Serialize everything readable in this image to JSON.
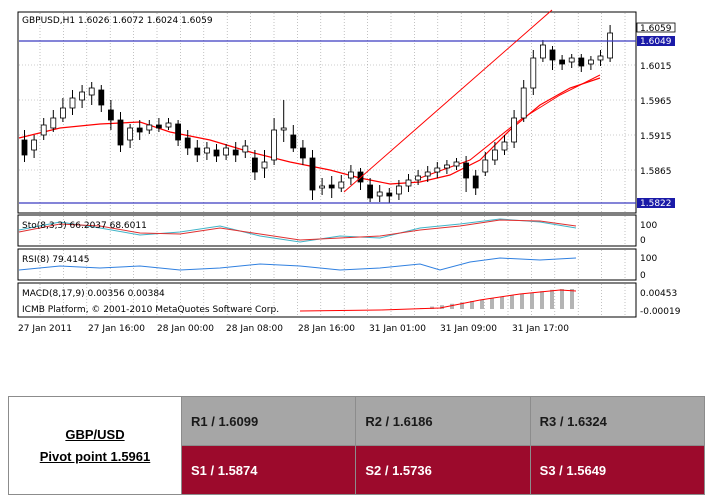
{
  "chart": {
    "header": "GBPUSD,H1  1.6026 1.6072 1.6024 1.6059",
    "price_labels": [
      "1.6059",
      "1.6049",
      "1.6015",
      "1.5965",
      "1.5915",
      "1.5865",
      "1.5822"
    ],
    "stoch_label": "Sto(8,3,3) 66.2037 68.6011",
    "stoch_levels": [
      "100",
      "0"
    ],
    "rsi_label": "RSI(8) 79.4145",
    "rsi_levels": [
      "100",
      "0"
    ],
    "macd_label": "MACD(8,17,9) 0.00356 0.00384",
    "macd_levels": [
      "0.00453",
      "-0.00019"
    ],
    "copyright": "ICMB Platform, © 2001-2010 MetaQuotes Software Corp.",
    "time_labels": [
      "27 Jan 2011",
      "27 Jan 16:00",
      "28 Jan 00:00",
      "28 Jan 08:00",
      "28 Jan 16:00",
      "31 Jan 01:00",
      "31 Jan 09:00",
      "31 Jan 17:00"
    ],
    "colors": {
      "candle_border": "#000000",
      "bull_candle": "#ffffff",
      "bear_candle": "#000000",
      "moving_average": "#ff0000",
      "trend_line": "#ff0000",
      "horizontal_lines": "#3a3ac0",
      "price_tag": "#1a1aa8",
      "stoch_main": "#40b4c8",
      "stoch_signal": "#e03030",
      "rsi_line": "#3080e0",
      "macd_hist": "#b4b4b4",
      "macd_signal": "#ff0000"
    }
  },
  "pivot": {
    "pair": "GBP/USD",
    "pivot_point": "Pivot point 1.5961",
    "resistance": [
      "R1 / 1.6099",
      "R2 / 1.6186",
      "R3 / 1.6324"
    ],
    "support": [
      "S1 / 1.5874",
      "S2 / 1.5736",
      "S3 / 1.5649"
    ],
    "colors": {
      "resistance_bg": "#a6a6a6",
      "support_bg": "#9c0a2c"
    }
  }
}
